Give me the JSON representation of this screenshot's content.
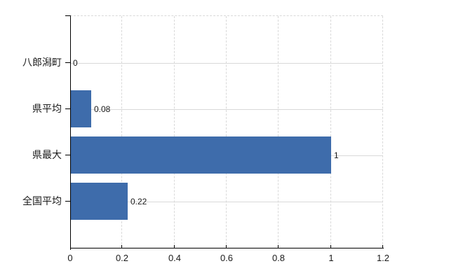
{
  "chart_data": {
    "type": "bar",
    "orientation": "horizontal",
    "title": "",
    "xlabel": "",
    "ylabel": "",
    "categories": [
      "八郎潟町",
      "県平均",
      "県最大",
      "全国平均"
    ],
    "values": [
      0,
      0.08,
      1,
      0.22
    ],
    "value_labels": [
      "0",
      "0.08",
      "1",
      "0.22"
    ],
    "xlim": [
      0,
      1.2
    ],
    "x_ticks": [
      0,
      0.2,
      0.4,
      0.6,
      0.8,
      1,
      1.2
    ],
    "x_tick_labels": [
      "0",
      "0.2",
      "0.4",
      "0.6",
      "0.8",
      "1",
      "1.2"
    ],
    "grid": true,
    "legend": false,
    "colors": {
      "bar": "#3e6cab",
      "axis": "#000000",
      "gridline": "#d9d9d9",
      "text": "#1a1a1a",
      "background": "#ffffff"
    }
  }
}
